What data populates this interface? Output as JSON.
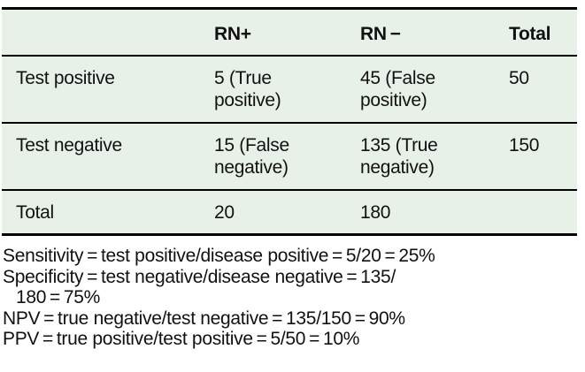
{
  "colors": {
    "table_background": "#e8f1e8",
    "rule": "#000000",
    "text": "#111111",
    "page_background": "#ffffff"
  },
  "table": {
    "headers": [
      "",
      "RN+",
      "RN −",
      "Total"
    ],
    "rows": [
      {
        "label": "Test positive",
        "rn_pos": "5 (True positive)",
        "rn_neg": "45 (False positive)",
        "total": "50"
      },
      {
        "label": "Test negative",
        "rn_pos": "15 (False negative)",
        "rn_neg": "135 (True negative)",
        "total": "150"
      },
      {
        "label": "Total",
        "rn_pos": "20",
        "rn_neg": "180",
        "total": ""
      }
    ]
  },
  "footer": {
    "lines": [
      "Sensitivity = test positive/disease positive = 5/20 = 25%",
      "Specificity = test negative/disease negative = 135/",
      "180 = 75%",
      "NPV = true negative/test negative = 135/150 = 90%",
      "PPV = true positive/test positive = 5/50 = 10%"
    ]
  },
  "chart_data": {
    "type": "table",
    "columns": [
      "",
      "RN+",
      "RN −",
      "Total"
    ],
    "rows": [
      [
        "Test positive",
        "5 (True positive)",
        "45 (False positive)",
        "50"
      ],
      [
        "Test negative",
        "15 (False negative)",
        "135 (True negative)",
        "150"
      ],
      [
        "Total",
        "20",
        "180",
        ""
      ]
    ],
    "derived_stats": {
      "sensitivity": "5/20 = 25%",
      "specificity": "135/180 = 75%",
      "npv": "135/150 = 90%",
      "ppv": "5/50 = 10%"
    }
  }
}
